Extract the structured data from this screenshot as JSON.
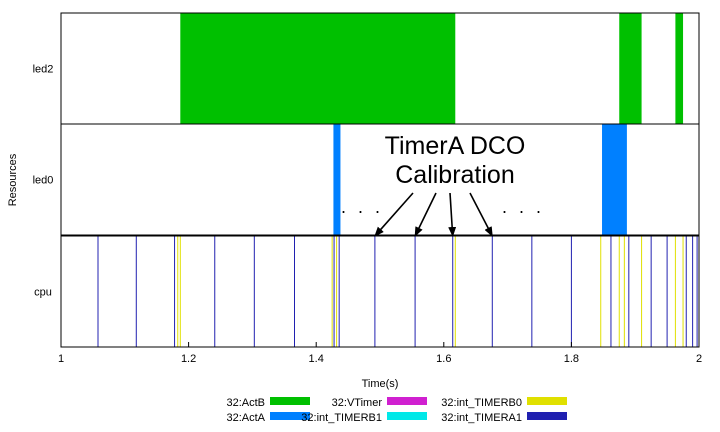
{
  "chart_data": {
    "type": "timeline",
    "xlabel": "Time(s)",
    "ylabel": "Resources",
    "xlim": [
      1,
      2
    ],
    "xticks": [
      "1",
      "1.2",
      "1.4",
      "1.6",
      "1.8",
      "2"
    ],
    "xtick_values": [
      1,
      1.2,
      1.4,
      1.6,
      1.8,
      2
    ],
    "lanes": [
      {
        "name": "led2",
        "events": [
          {
            "series": "32:ActB",
            "start": 1.187,
            "end": 1.618
          },
          {
            "series": "32:ActB",
            "start": 1.875,
            "end": 1.91
          },
          {
            "series": "32:ActB",
            "start": 1.963,
            "end": 1.975
          }
        ]
      },
      {
        "name": "led0",
        "events": [
          {
            "series": "32:ActA",
            "start": 1.427,
            "end": 1.438
          },
          {
            "series": "32:ActA",
            "start": 1.848,
            "end": 1.887
          }
        ]
      },
      {
        "name": "cpu",
        "events": [
          {
            "series": "32:int_TIMERA1",
            "at": 1.0
          },
          {
            "series": "32:int_TIMERA1",
            "at": 1.058
          },
          {
            "series": "32:int_TIMERA1",
            "at": 1.118
          },
          {
            "series": "32:int_TIMERA1",
            "at": 1.178
          },
          {
            "series": "32:int_TIMERB0",
            "at": 1.183
          },
          {
            "series": "32:int_TIMERB0",
            "at": 1.187
          },
          {
            "series": "32:int_TIMERA1",
            "at": 1.241
          },
          {
            "series": "32:int_TIMERA1",
            "at": 1.303
          },
          {
            "series": "32:int_TIMERA1",
            "at": 1.366
          },
          {
            "series": "32:int_TIMERB0",
            "at": 1.425
          },
          {
            "series": "32:int_TIMERA1",
            "at": 1.428
          },
          {
            "series": "32:int_TIMERB0",
            "at": 1.432
          },
          {
            "series": "32:int_TIMERA1",
            "at": 1.436
          },
          {
            "series": "32:int_TIMERA1",
            "at": 1.492
          },
          {
            "series": "32:int_TIMERA1",
            "at": 1.555
          },
          {
            "series": "32:int_TIMERA1",
            "at": 1.614
          },
          {
            "series": "32:int_TIMERB0",
            "at": 1.618
          },
          {
            "series": "32:int_TIMERA1",
            "at": 1.676
          },
          {
            "series": "32:int_TIMERA1",
            "at": 1.738
          },
          {
            "series": "32:int_TIMERA1",
            "at": 1.8
          },
          {
            "series": "32:int_TIMERB0",
            "at": 1.846
          },
          {
            "series": "32:int_TIMERA1",
            "at": 1.862
          },
          {
            "series": "32:int_TIMERB0",
            "at": 1.875
          },
          {
            "series": "32:int_TIMERB0",
            "at": 1.883
          },
          {
            "series": "32:int_TIMERA1",
            "at": 1.89
          },
          {
            "series": "32:int_TIMERB0",
            "at": 1.91
          },
          {
            "series": "32:int_TIMERA1",
            "at": 1.925
          },
          {
            "series": "32:int_TIMERA1",
            "at": 1.95
          },
          {
            "series": "32:int_TIMERB0",
            "at": 1.963
          },
          {
            "series": "32:int_TIMERB0",
            "at": 1.975
          },
          {
            "series": "32:int_TIMERA1",
            "at": 1.98
          },
          {
            "series": "32:int_TIMERA1",
            "at": 1.99
          },
          {
            "series": "32:int_TIMERA1",
            "at": 1.997
          },
          {
            "series": "32:int_TIMERA1",
            "at": 2.0
          }
        ]
      }
    ],
    "legend": {
      "placement": "bottom",
      "entries": [
        {
          "name": "32:ActB",
          "color": "#00c000"
        },
        {
          "name": "32:ActA",
          "color": "#0080ff"
        },
        {
          "name": "32:VTimer",
          "color": "#d020d0"
        },
        {
          "name": "32:int_TIMERB1",
          "color": "#00e8e8"
        },
        {
          "name": "32:int_TIMERB0",
          "color": "#e0e000"
        },
        {
          "name": "32:int_TIMERA1",
          "color": "#2020b0"
        }
      ]
    },
    "annotation": {
      "lines": [
        "TimerA DCO",
        "Calibration"
      ],
      "ellipsis": "· · ·",
      "arrow_targets": [
        1.492,
        1.555,
        1.614,
        1.676
      ]
    },
    "grid": false
  }
}
